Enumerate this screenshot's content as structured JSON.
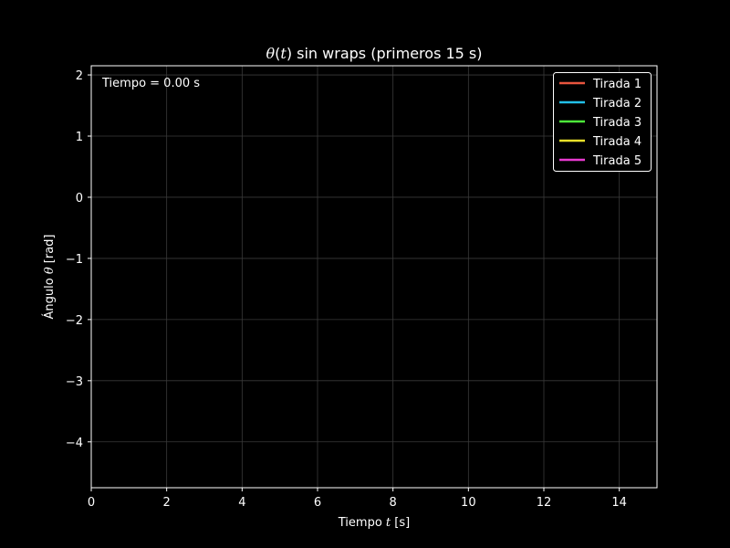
{
  "chart_data": {
    "type": "line",
    "title_parts": [
      "θ",
      "(",
      "t",
      ") sin wraps (primeros 15 s)"
    ],
    "xlabel_parts": [
      "Tiempo ",
      "t",
      " [s]"
    ],
    "ylabel_parts": [
      "Ángulo ",
      "θ",
      " [rad]"
    ],
    "annotation": "Tiempo = 0.00 s",
    "xlim": [
      0,
      15
    ],
    "ylim": [
      -4.75,
      2.15
    ],
    "xticks": [
      0,
      2,
      4,
      6,
      8,
      10,
      12,
      14
    ],
    "xtick_labels": [
      "0",
      "2",
      "4",
      "6",
      "8",
      "10",
      "12",
      "14"
    ],
    "yticks": [
      2,
      1,
      0,
      -1,
      -2,
      -3,
      -4
    ],
    "ytick_labels": [
      "2",
      "1",
      "0",
      "−1",
      "−2",
      "−3",
      "−4"
    ],
    "grid": true,
    "legend_position": "upper right",
    "series": [
      {
        "name": "Tirada 1",
        "color": "#e8553e",
        "x": [],
        "y": []
      },
      {
        "name": "Tirada 2",
        "color": "#22c0e8",
        "x": [],
        "y": []
      },
      {
        "name": "Tirada 3",
        "color": "#4de83a",
        "x": [],
        "y": []
      },
      {
        "name": "Tirada 4",
        "color": "#e8e02a",
        "x": [],
        "y": []
      },
      {
        "name": "Tirada 5",
        "color": "#e83ad0",
        "x": [],
        "y": []
      }
    ],
    "colors": {
      "background": "#000000",
      "foreground": "#ffffff",
      "grid": "#3a3a3a"
    }
  }
}
